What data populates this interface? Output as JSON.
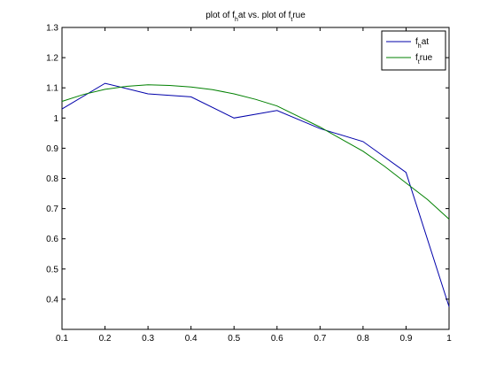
{
  "chart_data": {
    "type": "line",
    "title": {
      "parts": [
        {
          "text": "plot of f",
          "sub": false
        },
        {
          "text": "h",
          "sub": true
        },
        {
          "text": "at vs. plot of f",
          "sub": false
        },
        {
          "text": "t",
          "sub": true
        },
        {
          "text": "rue",
          "sub": false
        }
      ]
    },
    "xlabel": "",
    "ylabel": "",
    "xlim": [
      0.1,
      1.0
    ],
    "ylim": [
      0.3,
      1.3
    ],
    "xticks": [
      0.1,
      0.2,
      0.3,
      0.4,
      0.5,
      0.6,
      0.7,
      0.8,
      0.9,
      1.0
    ],
    "xtick_labels": [
      "0.1",
      "0.2",
      "0.3",
      "0.4",
      "0.5",
      "0.6",
      "0.7",
      "0.8",
      "0.9",
      "1"
    ],
    "yticks": [
      0.4,
      0.5,
      0.6,
      0.7,
      0.8,
      0.9,
      1.0,
      1.1,
      1.2,
      1.3
    ],
    "ytick_labels": [
      "0.4",
      "0.5",
      "0.6",
      "0.7",
      "0.8",
      "0.9",
      "1",
      "1.1",
      "1.2",
      "1.3"
    ],
    "grid": false,
    "legend_position": "top-right",
    "series": [
      {
        "name_parts": [
          {
            "text": "f",
            "sub": false
          },
          {
            "text": "h",
            "sub": true
          },
          {
            "text": "at",
            "sub": false
          }
        ],
        "color": "#0000aa",
        "x": [
          0.1,
          0.2,
          0.3,
          0.4,
          0.5,
          0.6,
          0.7,
          0.8,
          0.9,
          1.0
        ],
        "y": [
          1.03,
          1.115,
          1.08,
          1.07,
          1.0,
          1.025,
          0.965,
          0.922,
          0.82,
          0.375
        ]
      },
      {
        "name_parts": [
          {
            "text": "f",
            "sub": false
          },
          {
            "text": "t",
            "sub": true
          },
          {
            "text": "rue",
            "sub": false
          }
        ],
        "color": "#008000",
        "x": [
          0.1,
          0.15,
          0.2,
          0.25,
          0.3,
          0.35,
          0.4,
          0.45,
          0.5,
          0.55,
          0.6,
          0.65,
          0.7,
          0.75,
          0.8,
          0.85,
          0.9,
          0.95,
          1.0
        ],
        "y": [
          1.055,
          1.078,
          1.095,
          1.105,
          1.11,
          1.108,
          1.103,
          1.094,
          1.08,
          1.062,
          1.04,
          1.005,
          0.97,
          0.93,
          0.89,
          0.84,
          0.785,
          0.73,
          0.665
        ]
      }
    ]
  }
}
